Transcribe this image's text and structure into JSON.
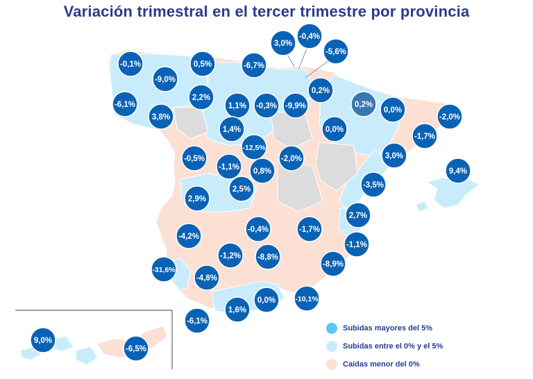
{
  "title": "Variación trimestral en el tercer trimestre por provincia",
  "colors": {
    "subidas_mayores": "#5bc8f0",
    "subidas_entre": "#c8ecfb",
    "caidas": "#fbe0d3",
    "sin_dato": "#dcdcdc",
    "bubble": "#0a62b4",
    "bubble_highlight": "#3a76b0",
    "title": "#2b3a8f"
  },
  "legend": [
    {
      "label": "Subidas mayores del 5%",
      "color": "#5bc8f0"
    },
    {
      "label": "Subidas entre el 0% y el 5%",
      "color": "#c8ecfb"
    },
    {
      "label": "Caídas menor del 0%",
      "color": "#fbe0d3"
    }
  ],
  "provinces": [
    {
      "label": "-0,1%"
    },
    {
      "label": "0,5%"
    },
    {
      "label": "-6,7%"
    },
    {
      "label": "3,0%"
    },
    {
      "label": "-0,4%"
    },
    {
      "label": "-5,6%"
    },
    {
      "label": "-9,0%"
    },
    {
      "label": "-6,1%"
    },
    {
      "label": "2,2%"
    },
    {
      "label": "0,2%"
    },
    {
      "label": "0,2%",
      "highlight": true
    },
    {
      "label": "1,1%"
    },
    {
      "label": "-0,3%"
    },
    {
      "label": "-9,9%"
    },
    {
      "label": "0,0%"
    },
    {
      "label": "-2,0%"
    },
    {
      "label": "3,8%"
    },
    {
      "label": "1,4%"
    },
    {
      "label": "0,0%"
    },
    {
      "label": "-1,7%"
    },
    {
      "label": "-12,5%"
    },
    {
      "label": "3,0%"
    },
    {
      "label": "-0,5%"
    },
    {
      "label": "-2,0%"
    },
    {
      "label": "-1,1%"
    },
    {
      "label": "0,8%"
    },
    {
      "label": "9,4%"
    },
    {
      "label": "2,5%"
    },
    {
      "label": "-3,5%"
    },
    {
      "label": "2,9%"
    },
    {
      "label": "2,7%"
    },
    {
      "label": "-4,2%"
    },
    {
      "label": "-0,4%"
    },
    {
      "label": "-1,7%"
    },
    {
      "label": "-1,1%"
    },
    {
      "label": "-1,2%"
    },
    {
      "label": "-8,8%"
    },
    {
      "label": "-8,9%"
    },
    {
      "label": "-31,6%"
    },
    {
      "label": "-4,8%"
    },
    {
      "label": "-10,1%"
    },
    {
      "label": "0,0%"
    },
    {
      "label": "1,6%"
    },
    {
      "label": "-6,1%"
    },
    {
      "label": "9,0%"
    },
    {
      "label": "-6,5%"
    }
  ]
}
